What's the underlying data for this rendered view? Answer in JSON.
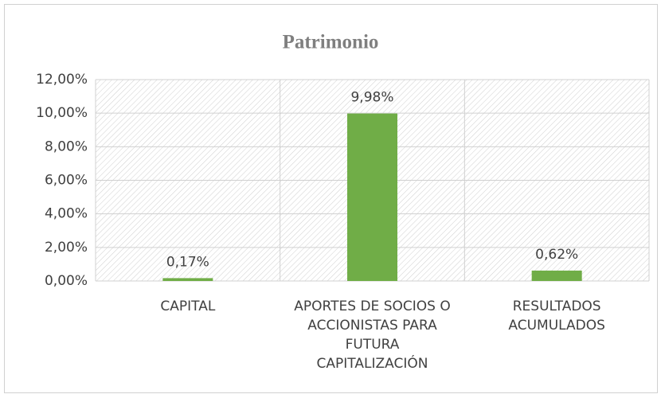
{
  "chart_data": {
    "type": "bar",
    "title": "Patrimonio",
    "categories": [
      "CAPITAL",
      "APORTES DE SOCIOS O ACCIONISTAS PARA FUTURA CAPITALIZACIÓN",
      "RESULTADOS ACUMULADOS"
    ],
    "values": [
      0.17,
      9.98,
      0.62
    ],
    "value_labels": [
      "0,17%",
      "9,98%",
      "0,62%"
    ],
    "color": "#70ad47",
    "ylim": [
      0,
      12
    ],
    "yticks": [
      {
        "value": 0,
        "label": "0,00%"
      },
      {
        "value": 2,
        "label": "2,00%"
      },
      {
        "value": 4,
        "label": "4,00%"
      },
      {
        "value": 6,
        "label": "6,00%"
      },
      {
        "value": 8,
        "label": "8,00%"
      },
      {
        "value": 10,
        "label": "10,00%"
      },
      {
        "value": 12,
        "label": "12,00%"
      }
    ],
    "grid": true
  }
}
